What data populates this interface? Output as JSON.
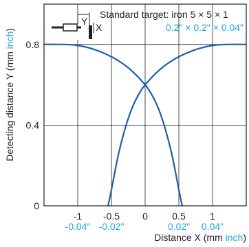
{
  "colors": {
    "curve": "#1b5fa8",
    "inch": "#1aa7e0",
    "text": "#231f20",
    "grid": "#231f20"
  },
  "chart_data": {
    "type": "line",
    "grid": true,
    "xlabel": {
      "text": "Distance X (mm",
      "inch": "inch",
      "suffix": ")"
    },
    "ylabel": {
      "text": "Detecting distance Y (mm",
      "inch": "inch",
      "suffix": ")"
    },
    "xlim": [
      -1.5,
      1.5
    ],
    "ylim": [
      0,
      1.0
    ],
    "x_ticks": [
      {
        "value": -1,
        "label": "-1",
        "inch": "-0.04\""
      },
      {
        "value": -0.5,
        "label": "-0.5",
        "inch": "-0.02\""
      },
      {
        "value": 0,
        "label": "0",
        "inch": ""
      },
      {
        "value": 0.5,
        "label": "0.5",
        "inch": "0.02\""
      },
      {
        "value": 1,
        "label": "1",
        "inch": "0.04\""
      }
    ],
    "y_ticks": [
      {
        "value": 0,
        "label": "0"
      },
      {
        "value": 0.4,
        "label": "0.4"
      },
      {
        "value": 0.8,
        "label": "0.8"
      }
    ],
    "annotation": {
      "line1": "Standard target: iron 5 × 5 × 1",
      "line2": "0.2\" × 0.2\" × 0.04\"",
      "label_y": "Y",
      "label_x": "X"
    },
    "series": [
      {
        "x": [
          -1.5,
          -1.2,
          -1.0,
          -0.8,
          -0.6,
          -0.4,
          -0.2,
          0.0,
          0.1,
          0.2,
          0.3,
          0.4,
          0.5,
          0.55
        ],
        "y": [
          0.8,
          0.8,
          0.795,
          0.78,
          0.755,
          0.72,
          0.67,
          0.6,
          0.55,
          0.48,
          0.38,
          0.25,
          0.08,
          0.0
        ]
      },
      {
        "x": [
          -0.55,
          -0.5,
          -0.4,
          -0.3,
          -0.2,
          -0.1,
          0.0,
          0.2,
          0.4,
          0.6,
          0.8,
          1.0,
          1.2,
          1.5
        ],
        "y": [
          0.0,
          0.08,
          0.25,
          0.38,
          0.48,
          0.55,
          0.6,
          0.67,
          0.72,
          0.755,
          0.78,
          0.795,
          0.8,
          0.8
        ]
      }
    ]
  }
}
